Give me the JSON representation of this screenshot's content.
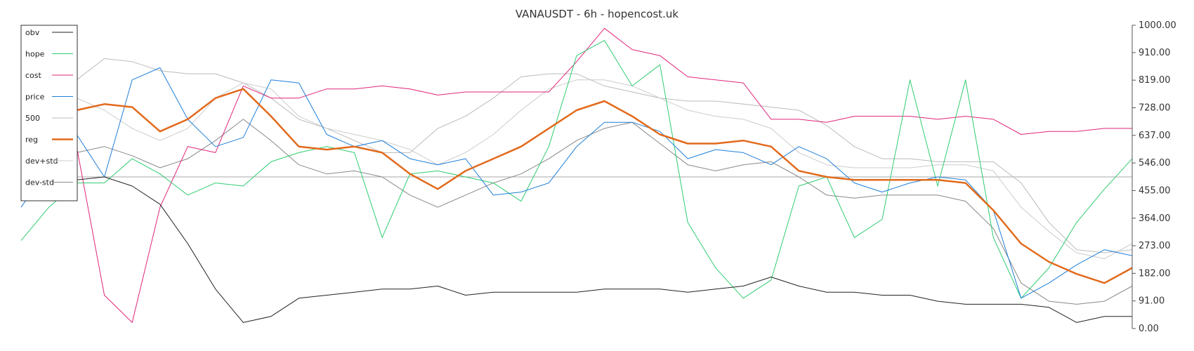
{
  "chart_data": {
    "type": "line",
    "title": "VANAUSDT - 6h - hopencost.uk",
    "xlabel": "",
    "ylabel": "",
    "ylim": [
      0,
      1000
    ],
    "yticks": [
      "1000.00",
      "910.00",
      "819.00",
      "728.00",
      "637.00",
      "546.00",
      "455.00",
      "364.00",
      "273.00",
      "182.00",
      "91.00",
      "0.00"
    ],
    "reference_line": 500,
    "grid": false,
    "legend_position": "top-left",
    "x": [
      0,
      10,
      20,
      30,
      40,
      50,
      60,
      70,
      80,
      90,
      100,
      110,
      120,
      130,
      140,
      150,
      160,
      170,
      180,
      190,
      200,
      210,
      220,
      230,
      240,
      250,
      260,
      270,
      280,
      290,
      300,
      310,
      320,
      330,
      340,
      350,
      360,
      370,
      380,
      390,
      400
    ],
    "series": [
      {
        "name": "obv",
        "color": "#222222",
        "width": 1,
        "values": [
          530,
          460,
          490,
          500,
          470,
          410,
          280,
          130,
          20,
          40,
          100,
          110,
          120,
          130,
          130,
          140,
          110,
          120,
          120,
          120,
          120,
          130,
          130,
          130,
          120,
          130,
          140,
          170,
          140,
          120,
          120,
          110,
          110,
          90,
          80,
          80,
          80,
          70,
          20,
          40,
          40
        ]
      },
      {
        "name": "hope",
        "color": "#2ecc71",
        "width": 1,
        "values": [
          290,
          400,
          480,
          480,
          560,
          510,
          440,
          480,
          470,
          550,
          580,
          600,
          580,
          300,
          510,
          520,
          500,
          480,
          420,
          600,
          900,
          950,
          800,
          870,
          350,
          200,
          100,
          160,
          470,
          500,
          300,
          360,
          820,
          470,
          820,
          300,
          100,
          200,
          350,
          460,
          560
        ]
      },
      {
        "name": "cost",
        "color": "#e0257a",
        "width": 1,
        "values": [
          560,
          650,
          600,
          110,
          20,
          400,
          600,
          580,
          800,
          760,
          760,
          790,
          790,
          800,
          790,
          770,
          780,
          780,
          780,
          780,
          880,
          990,
          920,
          900,
          830,
          820,
          810,
          690,
          690,
          680,
          700,
          700,
          700,
          690,
          700,
          690,
          640,
          650,
          650,
          660,
          660
        ]
      },
      {
        "name": "price",
        "color": "#1e7fd9",
        "width": 1,
        "values": [
          400,
          530,
          640,
          500,
          820,
          860,
          690,
          600,
          630,
          820,
          810,
          640,
          600,
          620,
          560,
          540,
          560,
          440,
          450,
          480,
          600,
          680,
          680,
          650,
          560,
          590,
          580,
          540,
          600,
          560,
          480,
          450,
          480,
          500,
          490,
          390,
          100,
          150,
          210,
          260,
          240
        ]
      },
      {
        "name": "500",
        "color": "#bbbbbb",
        "width": 1,
        "values": [
          700,
          740,
          820,
          890,
          880,
          850,
          840,
          840,
          810,
          760,
          690,
          660,
          620,
          580,
          580,
          660,
          700,
          760,
          830,
          840,
          840,
          800,
          780,
          760,
          750,
          750,
          740,
          730,
          720,
          670,
          600,
          560,
          560,
          550,
          550,
          550,
          480,
          350,
          260,
          250,
          260
        ]
      },
      {
        "name": "reg",
        "color": "#e26a1c",
        "width": 2.5,
        "values": [
          580,
          650,
          720,
          740,
          730,
          650,
          690,
          760,
          790,
          700,
          600,
          590,
          600,
          580,
          510,
          460,
          520,
          560,
          600,
          660,
          720,
          750,
          700,
          640,
          610,
          610,
          620,
          600,
          520,
          500,
          490,
          490,
          490,
          490,
          480,
          390,
          280,
          220,
          180,
          150,
          200
        ]
      },
      {
        "name": "dev+std",
        "color": "#cccccc",
        "width": 1,
        "values": [
          680,
          720,
          760,
          720,
          660,
          620,
          660,
          760,
          810,
          790,
          700,
          660,
          640,
          620,
          590,
          540,
          580,
          640,
          720,
          790,
          820,
          820,
          800,
          760,
          720,
          700,
          690,
          660,
          580,
          540,
          530,
          530,
          530,
          540,
          540,
          520,
          400,
          320,
          250,
          230,
          280
        ]
      },
      {
        "name": "dev-std",
        "color": "#888888",
        "width": 1,
        "values": [
          470,
          520,
          580,
          600,
          570,
          530,
          560,
          620,
          690,
          620,
          540,
          510,
          520,
          500,
          440,
          400,
          440,
          480,
          510,
          560,
          620,
          660,
          680,
          610,
          540,
          520,
          540,
          550,
          500,
          440,
          430,
          440,
          440,
          440,
          420,
          330,
          150,
          90,
          80,
          90,
          140
        ]
      }
    ]
  }
}
